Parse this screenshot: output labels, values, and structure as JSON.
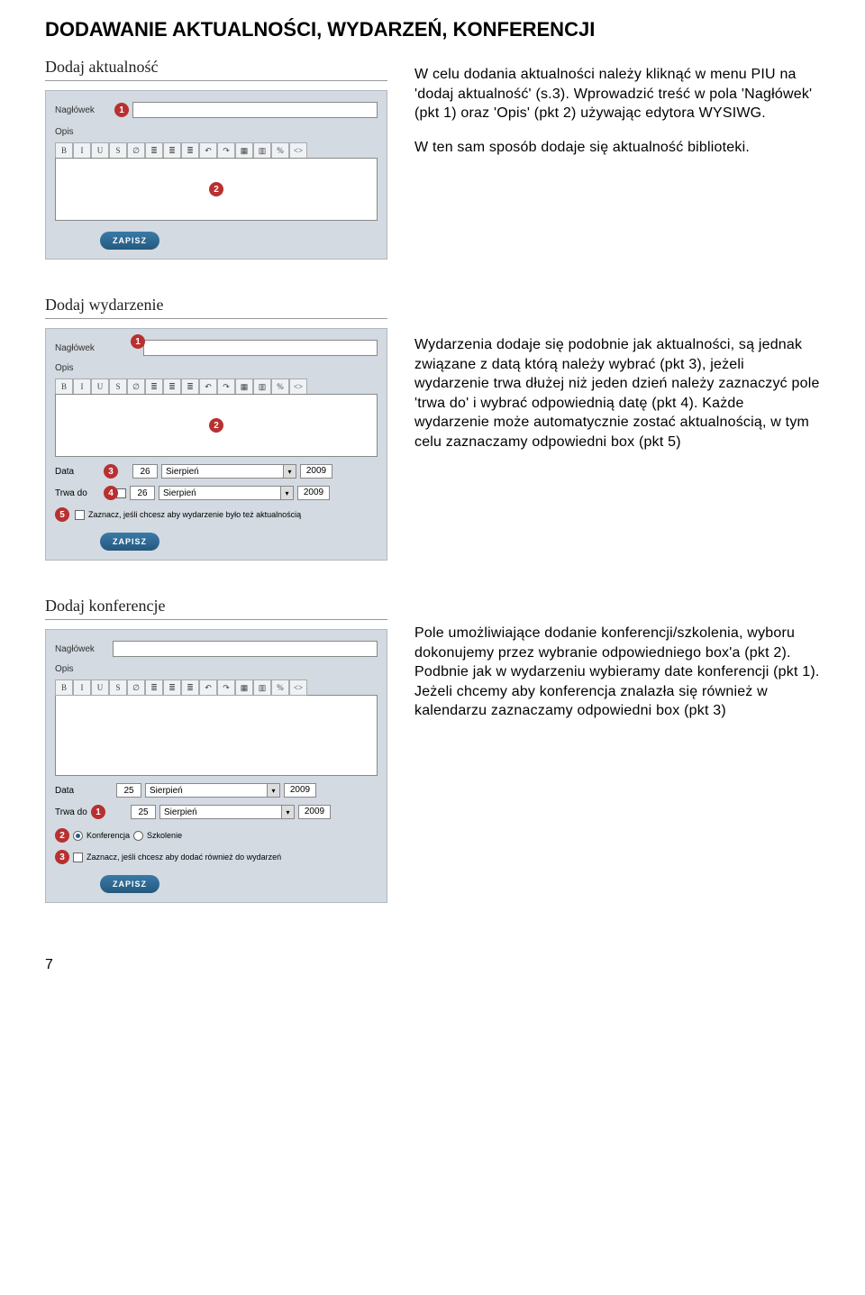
{
  "page_title": "DODAWANIE AKTUALNOŚCI, WYDARZEŃ, KONFERENCJI",
  "page_number": "7",
  "toolbar_buttons": [
    "B",
    "I",
    "U",
    "S",
    "∅",
    "≣",
    "≣",
    "≣",
    "↶",
    "↷",
    "▦",
    "▥",
    "%",
    "<>"
  ],
  "save_label": "ZAPISZ",
  "section1": {
    "title": "Dodaj aktualność",
    "label_naglowek": "Nagłówek",
    "label_opis": "Opis",
    "badge1": "1",
    "badge2": "2",
    "desc_p1": "W celu dodania aktualności należy kliknąć w menu PIU na 'dodaj aktualność' (s.3). Wprowadzić treść w pola 'Nagłówek' (pkt 1) oraz 'Opis' (pkt 2) używając edytora WYSIWG.",
    "desc_p2": "W ten sam sposób dodaje się aktualność biblioteki."
  },
  "section2": {
    "title": "Dodaj wydarzenie",
    "label_naglowek": "Nagłówek",
    "label_opis": "Opis",
    "label_data": "Data",
    "label_trwa": "Trwa do",
    "check_label": "Zaznacz, jeśli chcesz aby wydarzenie było też aktualnością",
    "day": "26",
    "month": "Sierpień",
    "year": "2009",
    "badge1": "1",
    "badge2": "2",
    "badge3": "3",
    "badge4": "4",
    "badge5": "5",
    "desc": "Wydarzenia dodaje się podobnie jak aktualności, są jednak związane z datą którą należy wybrać (pkt 3), jeżeli wydarzenie trwa dłużej niż jeden dzień należy zaznaczyć pole 'trwa do' i wybrać odpowiednią datę (pkt 4). Każde wydarzenie może automatycznie zostać aktualnością, w tym celu zaznaczamy odpowiedni box (pkt 5)"
  },
  "section3": {
    "title": "Dodaj konferencje",
    "label_naglowek": "Nagłówek",
    "label_opis": "Opis",
    "label_data": "Data",
    "label_trwa": "Trwa do",
    "radio_konf": "Konferencja",
    "radio_szk": "Szkolenie",
    "check_label": "Zaznacz, jeśli chcesz aby dodać również do wydarzeń",
    "day": "25",
    "month": "Sierpień",
    "year": "2009",
    "badge1": "1",
    "badge2": "2",
    "badge3": "3",
    "desc": "Pole umożliwiające dodanie konferencji/szkolenia, wyboru dokonujemy przez wybranie odpowiedniego box'a (pkt 2). Podbnie jak w wydarzeniu wybieramy date konferencji (pkt 1). Jeżeli chcemy aby konferencja znalazła się również w kalendarzu zaznaczamy odpowiedni box (pkt 3)"
  }
}
